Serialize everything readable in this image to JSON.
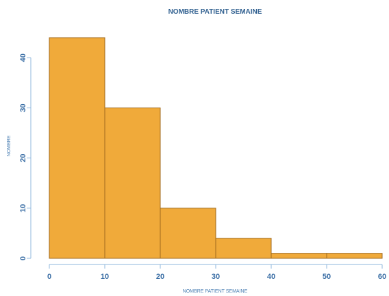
{
  "chart_data": {
    "type": "bar",
    "title": "NOMBRE PATIENT SEMAINE",
    "xlabel": "NOMBRE PATIENT SEMAINE",
    "ylabel": "NOMBRE",
    "x_bins": [
      [
        0,
        10
      ],
      [
        10,
        20
      ],
      [
        20,
        30
      ],
      [
        30,
        40
      ],
      [
        40,
        50
      ],
      [
        50,
        60
      ]
    ],
    "values": [
      44,
      30,
      10,
      4,
      1,
      1
    ],
    "x_ticks": [
      0,
      10,
      20,
      30,
      40,
      50,
      60
    ],
    "y_ticks": [
      0,
      10,
      20,
      30,
      40
    ],
    "xlim": [
      0,
      60
    ],
    "ylim": [
      0,
      44
    ],
    "grid": false,
    "colors": {
      "bar_fill": "#f0aa3a",
      "bar_stroke": "#9f6a1f",
      "axis": "#8fb7dc",
      "title": "#2f5f8f",
      "labels": "#3a6ea5"
    }
  }
}
